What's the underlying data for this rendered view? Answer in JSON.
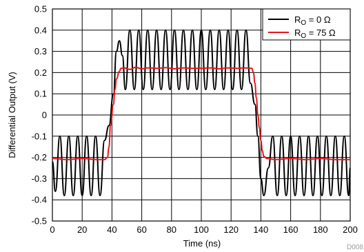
{
  "chart_data": {
    "type": "line",
    "title": "",
    "xlabel": "Time (ns)",
    "ylabel": "Differential Output (V)",
    "xlim": [
      0,
      200
    ],
    "ylim": [
      -0.5,
      0.5
    ],
    "xticks": [
      0,
      20,
      40,
      60,
      80,
      100,
      120,
      140,
      160,
      180,
      200
    ],
    "yticks": [
      -0.5,
      -0.4,
      -0.3,
      -0.2,
      -0.1,
      0,
      0.1,
      0.2,
      0.3,
      0.4,
      0.5
    ],
    "ytick_labels": [
      "-0.5",
      "-0.4",
      "-0.3",
      "-0.2",
      "-0.1",
      "0",
      "0.1",
      "0.2",
      "0.3",
      "0.4",
      "0.5"
    ],
    "grid": true,
    "legend_position": "top-right",
    "series": [
      {
        "name": "R_O = 0 Ω",
        "label_main": "R",
        "label_sub": "O",
        "label_rest": " = 0 Ω",
        "color": "#000000",
        "ringing_period_ns": 5.5,
        "low_level_range": [
          -0.39,
          -0.1
        ],
        "high_level_range": [
          0.12,
          0.4
        ],
        "rise_time_ns": [
          38,
          45
        ],
        "fall_time_ns": [
          134,
          142
        ],
        "points": [
          [
            0,
            -0.22
          ],
          [
            2,
            -0.36
          ],
          [
            5,
            -0.1
          ],
          [
            8,
            -0.38
          ],
          [
            11,
            -0.1
          ],
          [
            14,
            -0.38
          ],
          [
            17,
            -0.1
          ],
          [
            20,
            -0.38
          ],
          [
            23,
            -0.1
          ],
          [
            26,
            -0.38
          ],
          [
            29,
            -0.1
          ],
          [
            32,
            -0.38
          ],
          [
            35,
            -0.12
          ],
          [
            38,
            -0.05
          ],
          [
            41,
            0.1
          ],
          [
            43,
            0.3
          ],
          [
            45,
            0.35
          ],
          [
            47,
            0.28
          ],
          [
            49,
            0.12
          ],
          [
            52,
            0.4
          ],
          [
            55,
            0.12
          ],
          [
            58,
            0.4
          ],
          [
            61,
            0.12
          ],
          [
            64,
            0.4
          ],
          [
            67,
            0.12
          ],
          [
            70,
            0.4
          ],
          [
            73,
            0.12
          ],
          [
            76,
            0.4
          ],
          [
            79,
            0.12
          ],
          [
            82,
            0.4
          ],
          [
            85,
            0.12
          ],
          [
            88,
            0.4
          ],
          [
            91,
            0.12
          ],
          [
            94,
            0.4
          ],
          [
            97,
            0.12
          ],
          [
            100,
            0.4
          ],
          [
            103,
            0.12
          ],
          [
            106,
            0.4
          ],
          [
            109,
            0.12
          ],
          [
            112,
            0.4
          ],
          [
            115,
            0.12
          ],
          [
            118,
            0.4
          ],
          [
            121,
            0.12
          ],
          [
            124,
            0.4
          ],
          [
            127,
            0.12
          ],
          [
            130,
            0.4
          ],
          [
            133,
            0.15
          ],
          [
            136,
            0.05
          ],
          [
            138,
            -0.1
          ],
          [
            140,
            -0.3
          ],
          [
            142,
            -0.38
          ],
          [
            145,
            -0.25
          ],
          [
            148,
            -0.1
          ],
          [
            151,
            -0.38
          ],
          [
            154,
            -0.1
          ],
          [
            157,
            -0.38
          ],
          [
            160,
            -0.1
          ],
          [
            163,
            -0.38
          ],
          [
            166,
            -0.1
          ],
          [
            169,
            -0.38
          ],
          [
            172,
            -0.1
          ],
          [
            175,
            -0.38
          ],
          [
            178,
            -0.1
          ],
          [
            181,
            -0.38
          ],
          [
            184,
            -0.1
          ],
          [
            187,
            -0.38
          ],
          [
            190,
            -0.1
          ],
          [
            193,
            -0.38
          ],
          [
            196,
            -0.1
          ],
          [
            199,
            -0.38
          ],
          [
            200,
            -0.25
          ]
        ]
      },
      {
        "name": "R_O = 75 Ω",
        "label_main": "R",
        "label_sub": "O",
        "label_rest": " = 75 Ω",
        "color": "#e8141b",
        "points": [
          [
            0,
            -0.205
          ],
          [
            10,
            -0.21
          ],
          [
            20,
            -0.205
          ],
          [
            30,
            -0.21
          ],
          [
            35,
            -0.21
          ],
          [
            37,
            -0.2
          ],
          [
            38,
            -0.15
          ],
          [
            39,
            -0.05
          ],
          [
            41,
            0.05
          ],
          [
            42,
            0.12
          ],
          [
            43,
            0.17
          ],
          [
            45,
            0.205
          ],
          [
            46,
            0.22
          ],
          [
            48,
            0.222
          ],
          [
            52,
            0.215
          ],
          [
            56,
            0.225
          ],
          [
            60,
            0.218
          ],
          [
            64,
            0.222
          ],
          [
            70,
            0.22
          ],
          [
            76,
            0.223
          ],
          [
            82,
            0.218
          ],
          [
            88,
            0.222
          ],
          [
            94,
            0.22
          ],
          [
            100,
            0.22
          ],
          [
            106,
            0.222
          ],
          [
            112,
            0.218
          ],
          [
            118,
            0.222
          ],
          [
            124,
            0.22
          ],
          [
            130,
            0.222
          ],
          [
            134,
            0.22
          ],
          [
            135,
            0.2
          ],
          [
            136,
            0.15
          ],
          [
            137,
            0.08
          ],
          [
            138,
            0.0
          ],
          [
            139,
            -0.06
          ],
          [
            140,
            -0.12
          ],
          [
            141,
            -0.17
          ],
          [
            142,
            -0.195
          ],
          [
            144,
            -0.205
          ],
          [
            150,
            -0.21
          ],
          [
            160,
            -0.205
          ],
          [
            170,
            -0.21
          ],
          [
            180,
            -0.205
          ],
          [
            190,
            -0.21
          ],
          [
            200,
            -0.21
          ]
        ]
      }
    ],
    "watermark": "D008"
  }
}
